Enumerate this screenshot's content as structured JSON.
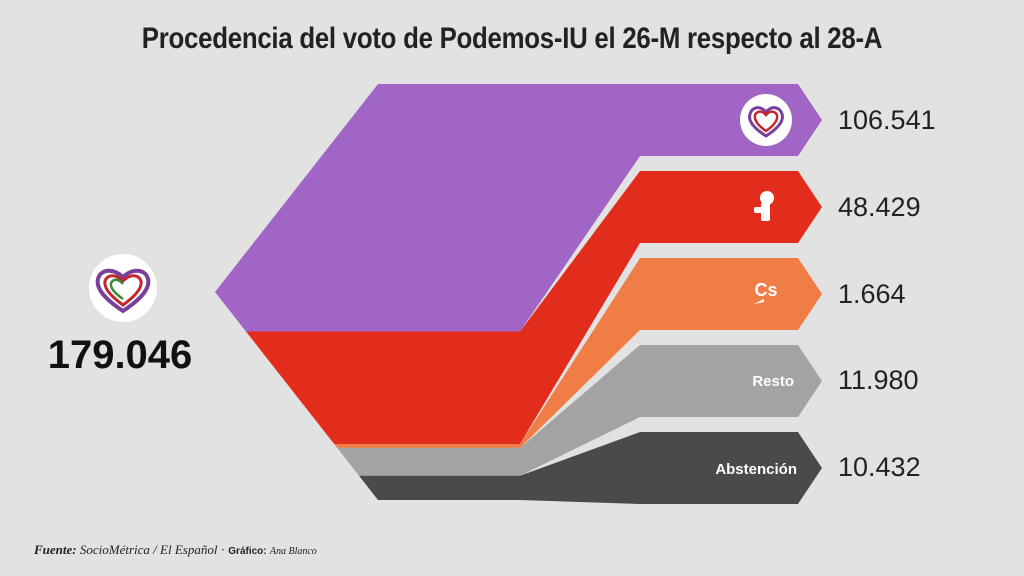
{
  "title": "Procedencia del voto de Podemos-IU el 26-M respecto al 28-A",
  "total": "179.046",
  "source": {
    "fuente_label": "Fuente:",
    "fuente_text": "SocioMétrica / El Español",
    "sep": " · ",
    "grafico_label": "Gráfico:",
    "grafico_text": "Ana Blanco"
  },
  "colors": {
    "background": "#e2e2e2",
    "podemos": "#a165c6",
    "psoe": "#e32d1c",
    "cs": "#f07c46",
    "resto": "#a3a3a3",
    "abstencion": "#4a4a4a"
  },
  "chart_data": {
    "type": "sankey",
    "title": "Procedencia del voto de Podemos-IU el 26-M respecto al 28-A",
    "target": {
      "name": "Podemos-IU",
      "icon": "podemos-heart-icon",
      "value": 179046,
      "label": "179.046"
    },
    "sources": [
      {
        "name": "Podemos-IU",
        "icon": "podemos-heart-icon",
        "value": 106541,
        "label": "106.541",
        "text": "",
        "color": "#a165c6"
      },
      {
        "name": "PSOE",
        "icon": "psoe-rose-icon",
        "value": 48429,
        "label": "48.429",
        "text": "",
        "color": "#e32d1c"
      },
      {
        "name": "Cs",
        "icon": "cs-logo-icon",
        "value": 1664,
        "label": "1.664",
        "text": "",
        "color": "#f07c46"
      },
      {
        "name": "Resto",
        "icon": "",
        "value": 11980,
        "label": "11.980",
        "text": "Resto",
        "color": "#a3a3a3"
      },
      {
        "name": "Abstención",
        "icon": "",
        "value": 10432,
        "label": "10.432",
        "text": "Abstención",
        "color": "#4a4a4a"
      }
    ]
  }
}
